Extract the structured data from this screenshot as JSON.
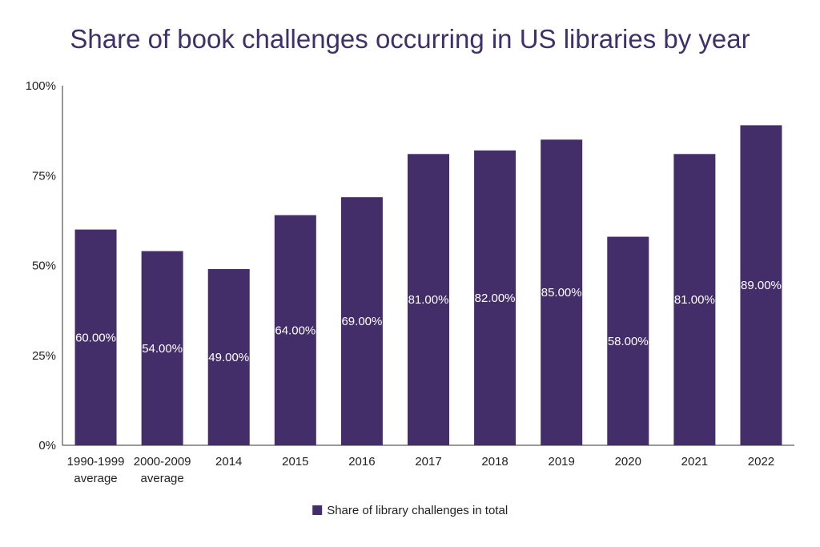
{
  "chart_data": {
    "type": "bar",
    "title": "Share of book challenges occurring in US libraries by year",
    "categories": [
      "1990-1999 average",
      "2000-2009 average",
      "2014",
      "2015",
      "2016",
      "2017",
      "2018",
      "2019",
      "2020",
      "2021",
      "2022"
    ],
    "category_lines": [
      [
        "1990-1999",
        "average"
      ],
      [
        "2000-2009",
        "average"
      ],
      [
        "2014"
      ],
      [
        "2015"
      ],
      [
        "2016"
      ],
      [
        "2017"
      ],
      [
        "2018"
      ],
      [
        "2019"
      ],
      [
        "2020"
      ],
      [
        "2021"
      ],
      [
        "2022"
      ]
    ],
    "series": [
      {
        "name": "Share of library challenges in total",
        "values": [
          60,
          54,
          49,
          64,
          69,
          81,
          82,
          85,
          58,
          81,
          89
        ],
        "labels": [
          "60.00%",
          "54.00%",
          "49.00%",
          "64.00%",
          "69.00%",
          "81.00%",
          "82.00%",
          "85.00%",
          "58.00%",
          "81.00%",
          "89.00%"
        ]
      }
    ],
    "ylim": [
      0,
      100
    ],
    "yticks": [
      0,
      25,
      50,
      75,
      100
    ],
    "ytick_labels": [
      "0%",
      "25%",
      "50%",
      "75%",
      "100%"
    ],
    "xlabel": "",
    "ylabel": "",
    "grid": false,
    "legend_position": "bottom-center",
    "colors": {
      "bar": "#432e6a",
      "title": "#40306a",
      "axis": "#333333"
    }
  }
}
